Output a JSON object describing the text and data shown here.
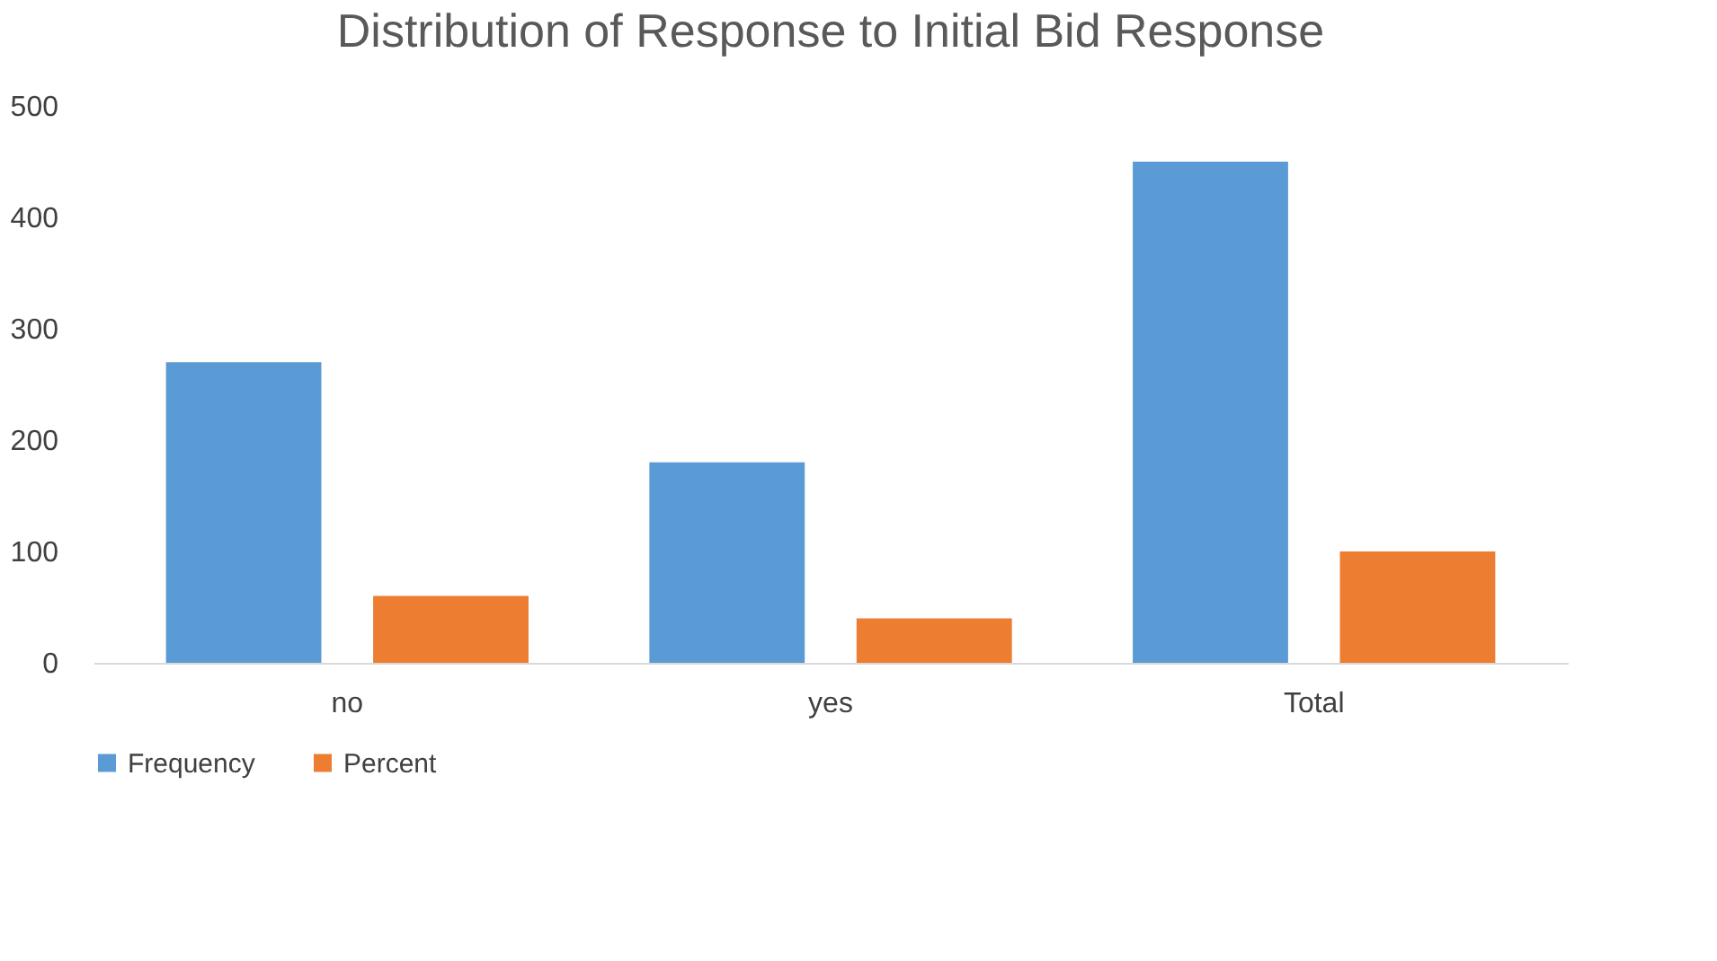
{
  "chart_data": {
    "type": "bar",
    "title": "Distribution of Response to Initial Bid Response",
    "categories": [
      "no",
      "yes",
      "Total"
    ],
    "series": [
      {
        "name": "Frequency",
        "color": "#5b9bd5",
        "values": [
          270,
          180,
          450
        ]
      },
      {
        "name": "Percent",
        "color": "#ed7d31",
        "values": [
          60,
          40,
          100
        ]
      }
    ],
    "ylim": [
      0,
      500
    ],
    "yticks": [
      0,
      100,
      200,
      300,
      400,
      500
    ],
    "grid": false,
    "legend": "bottom"
  }
}
